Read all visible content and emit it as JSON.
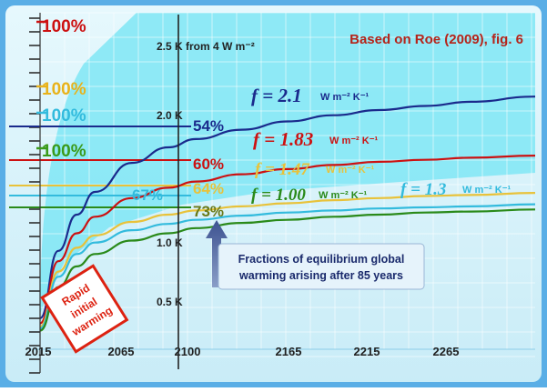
{
  "chart_data": {
    "type": "line",
    "title": "Based on Roe (2009), fig. 6",
    "x": [
      2015,
      2025,
      2035,
      2045,
      2065,
      2085,
      2100,
      2125,
      2150,
      2175,
      2200,
      2225,
      2250,
      2285
    ],
    "x_ticks": [
      "2015",
      "2065",
      "2100",
      "2165",
      "2215",
      "2265"
    ],
    "y_ticks": [
      "0.5 K",
      "1.0 K",
      "2.0 K",
      "2.5 K from 4 W m⁻²"
    ],
    "ylim": [
      0,
      3.25
    ],
    "series": [
      {
        "name": "f = 2.1 W m⁻² K⁻¹",
        "color": "#1a2a8c",
        "values": [
          0.3,
          0.95,
          1.3,
          1.52,
          1.8,
          1.95,
          2.03,
          2.12,
          2.2,
          2.26,
          2.31,
          2.35,
          2.39,
          2.44
        ],
        "equilibrium_label": "100%",
        "label_color": "#cc1111",
        "fraction": "54%",
        "fraction_color": "#1a2a8c"
      },
      {
        "name": "f = 1.83 W m⁻² K⁻¹",
        "color": "#cc1111",
        "values": [
          0.25,
          0.85,
          1.12,
          1.28,
          1.46,
          1.56,
          1.62,
          1.69,
          1.74,
          1.78,
          1.81,
          1.83,
          1.85,
          1.87
        ],
        "fraction": "60%",
        "fraction_color": "#cc1111"
      },
      {
        "name": "f = 1.47 W m⁻² K⁻¹",
        "color": "#e8c23a",
        "values": [
          0.22,
          0.75,
          0.98,
          1.1,
          1.23,
          1.3,
          1.34,
          1.38,
          1.41,
          1.44,
          1.46,
          1.48,
          1.49,
          1.51
        ],
        "equilibrium_label": "100%",
        "label_color": "#e8b21a",
        "fraction": "64%",
        "fraction_color": "#e8c23a"
      },
      {
        "name": "f = 1.3 W m⁻² K⁻¹",
        "color": "#33bbdd",
        "values": [
          0.2,
          0.7,
          0.92,
          1.03,
          1.15,
          1.21,
          1.25,
          1.29,
          1.32,
          1.34,
          1.36,
          1.37,
          1.38,
          1.4
        ],
        "equilibrium_label": "100%",
        "label_color": "#33bbdd",
        "fraction": "67%",
        "fraction_color": "#33bbdd"
      },
      {
        "name": "f = 1.00 W m⁻² K⁻¹",
        "color": "#2a8a1a",
        "values": [
          0.18,
          0.6,
          0.8,
          0.92,
          1.05,
          1.12,
          1.17,
          1.22,
          1.25,
          1.28,
          1.3,
          1.32,
          1.33,
          1.35
        ],
        "equilibrium_label": "100%",
        "label_color": "#3a9a1a",
        "fraction": "73%",
        "fraction_color": "#6a7a1a"
      }
    ]
  },
  "labels": {
    "title": "Based on Roe (2009), fig. 6",
    "y_25": "2.5 K from 4 W m⁻²",
    "y_20": "2.0 K",
    "y_10": "1.0 K",
    "y_05": "0.5 K",
    "pct_red": "100%",
    "pct_yellow": "100%",
    "pct_cyan": "100%",
    "pct_green": "100%",
    "f_21": "f = 2.1",
    "f_21_unit": "W m⁻² K⁻¹",
    "f_183": "f = 1.83",
    "f_183_unit": "W m⁻² K⁻¹",
    "f_147": "f = 1.47",
    "f_147_unit": "W m⁻² K⁻¹",
    "f_100": "f = 1.00",
    "f_100_unit": "W m⁻² K⁻¹",
    "f_13": "f = 1.3",
    "f_13_unit": "W m⁻² K⁻¹",
    "frac_54": "54%",
    "frac_60": "60%",
    "frac_64": "64%",
    "frac_67": "67%",
    "frac_73": "73%",
    "note_line1": "Fractions of equilibrium global",
    "note_line2": "warming arising after 85 years",
    "stamp_line1": "Rapid",
    "stamp_line2": "initial",
    "stamp_line3": "warming",
    "x_2015": "2015",
    "x_2065": "2065",
    "x_2100": "2100",
    "x_2165": "2165",
    "x_2215": "2215",
    "x_2265": "2265"
  },
  "colors": {
    "background": "#d6f1fa",
    "band": "#7fe6f4",
    "frame": "#4aa8e8"
  }
}
